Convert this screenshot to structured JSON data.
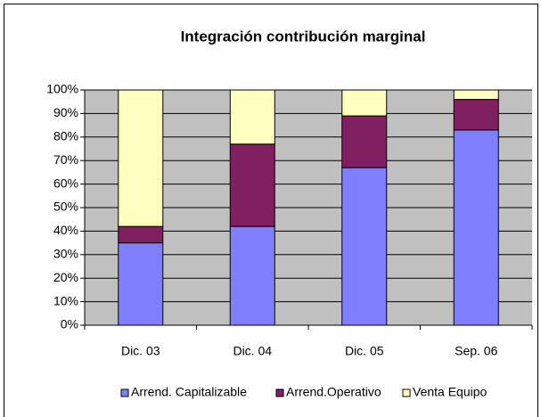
{
  "chart_data": {
    "type": "stacked_bar",
    "title": "Integración contribución marginal",
    "categories": [
      "Dic. 03",
      "Dic. 04",
      "Dic. 05",
      "Sep. 06"
    ],
    "series": [
      {
        "name": "Arrend. Capitalizable",
        "color": "#8080ff",
        "values": [
          35,
          42,
          67,
          83
        ]
      },
      {
        "name": "Arrend.Operativo",
        "color": "#802060",
        "values": [
          7,
          35,
          22,
          13
        ]
      },
      {
        "name": "Venta Equipo",
        "color": "#ffffc0",
        "values": [
          58,
          23,
          11,
          4
        ]
      }
    ],
    "ylim": [
      0,
      100
    ],
    "yticks": [
      {
        "value": 0,
        "label": "0%"
      },
      {
        "value": 10,
        "label": "10%"
      },
      {
        "value": 20,
        "label": "20%"
      },
      {
        "value": 30,
        "label": "30%"
      },
      {
        "value": 40,
        "label": "40%"
      },
      {
        "value": 50,
        "label": "50%"
      },
      {
        "value": 60,
        "label": "60%"
      },
      {
        "value": 70,
        "label": "70%"
      },
      {
        "value": 80,
        "label": "80%"
      },
      {
        "value": 90,
        "label": "90%"
      },
      {
        "value": 100,
        "label": "100%"
      }
    ],
    "grid": true,
    "legend": "bottom"
  }
}
